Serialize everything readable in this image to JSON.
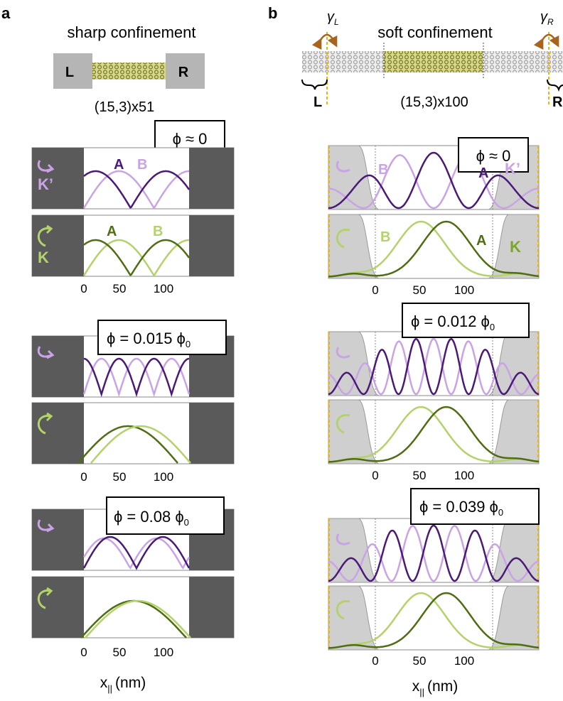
{
  "panel_a": {
    "letter": "a",
    "title": "sharp confinement",
    "left_lead": "L",
    "right_lead": "R",
    "tube_label": "(15,3)x51",
    "groups": [
      {
        "flux": "ϕ ≈ 0",
        "kp_label": "K’",
        "kp_a": "A",
        "kp_b": "B",
        "k_label": "K",
        "k_a": "A",
        "k_b": "B",
        "kp_dark_lobes": 1.5,
        "kp_light_lobes": 1.5,
        "k_dark_lobes": 1.5,
        "k_light_lobes": 1.5,
        "ticks": [
          "0",
          "50",
          "100"
        ]
      },
      {
        "flux": "ϕ  = 0.015 ϕ",
        "flux_sub": "0",
        "kp_dark_lobes": 2.5,
        "kp_light_lobes": 2.5,
        "k_dark_lobes": 0.9,
        "k_light_lobes": 0.9,
        "ticks": [
          "0",
          "50",
          "100"
        ]
      },
      {
        "flux": "ϕ  = 0.08 ϕ",
        "flux_sub": "0",
        "kp_dark_lobes": 2,
        "kp_light_lobes": 2,
        "k_dark_lobes": 1,
        "k_light_lobes": 1,
        "ticks": [
          "0",
          "50",
          "100"
        ]
      }
    ],
    "xlabel": "x",
    "xlabel_sub": "||",
    "xlabel_unit": "(nm)"
  },
  "panel_b": {
    "letter": "b",
    "title": "soft confinement",
    "gamma": "γ",
    "gamma_left_sub": "L",
    "gamma_right_sub": "R",
    "left_lead": "L",
    "right_lead": "R",
    "tube_label": "(15,3)x100",
    "groups": [
      {
        "flux": "ϕ ≈ 0",
        "kp_label": "K’",
        "kp_a": "A",
        "kp_b": "B",
        "k_label": "K",
        "k_a": "A",
        "k_b": "B",
        "ticks": [
          "0",
          "50",
          "100"
        ]
      },
      {
        "flux": "ϕ  = 0.012 ϕ",
        "flux_sub": "0",
        "ticks": [
          "0",
          "50",
          "100"
        ]
      },
      {
        "flux": "ϕ  = 0.039 ϕ",
        "flux_sub": "0",
        "ticks": [
          "0",
          "50",
          "100"
        ]
      }
    ],
    "xlabel": "x",
    "xlabel_sub": "||",
    "xlabel_unit": "(nm)"
  },
  "colors": {
    "kp_dark": "#4b1a78",
    "kp_light": "#c9a3e6",
    "k_dark": "#4f6d12",
    "k_light": "#b3d36a",
    "lead_grey": "#5a5a5a",
    "soft_grey": "#cfcfcf",
    "tube_olive": "#8a8a2e",
    "gamma_arrow": "#a8641c",
    "gamma_line": "#f0b400"
  }
}
